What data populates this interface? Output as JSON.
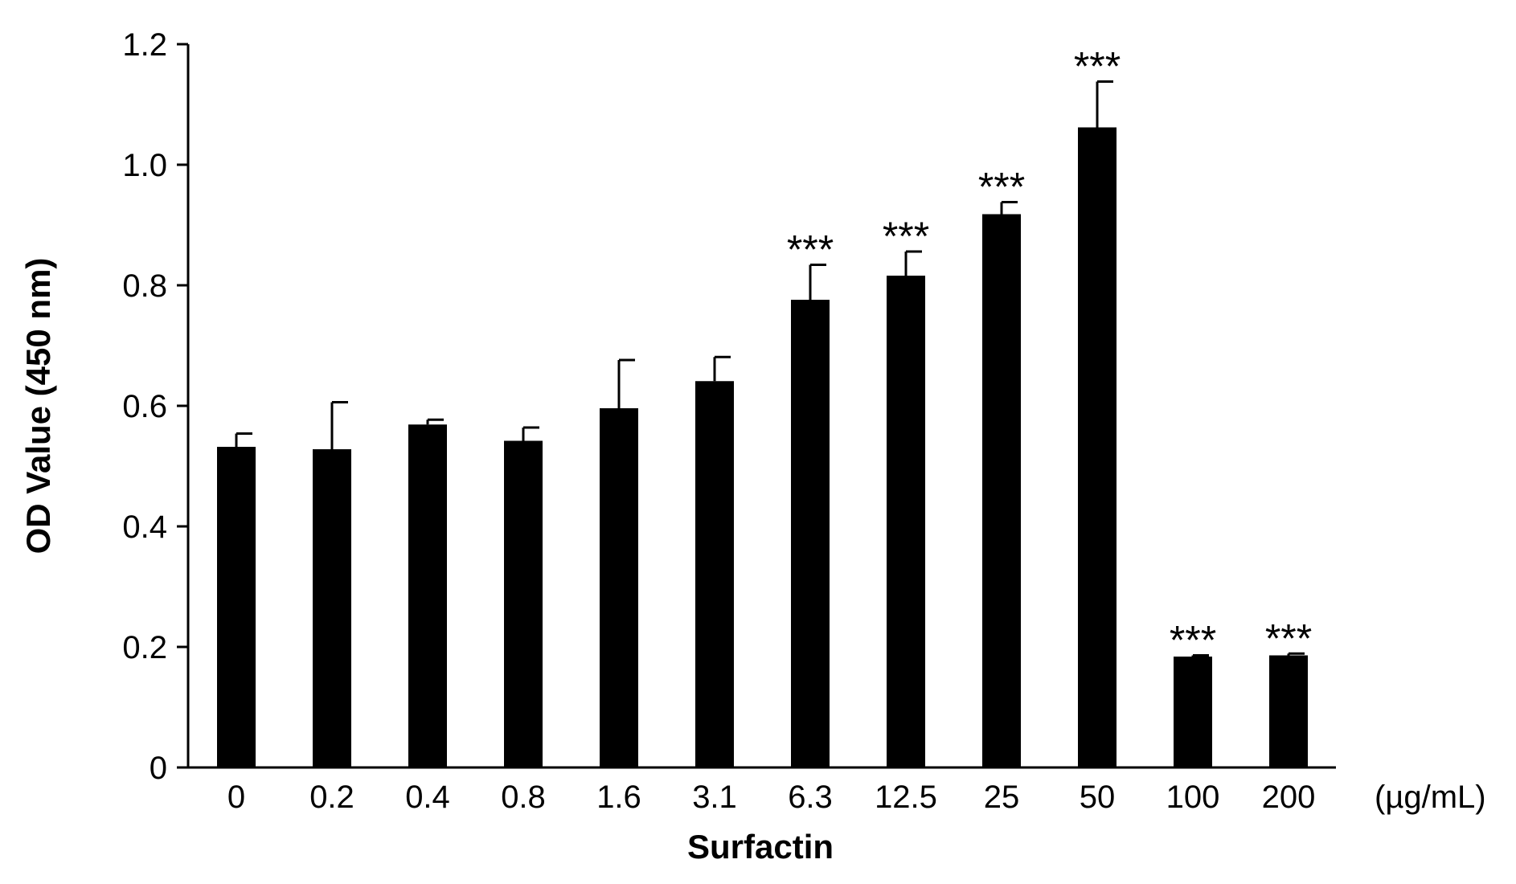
{
  "chart_data": {
    "type": "bar",
    "title": "",
    "xlabel": "Surfactin",
    "ylabel": "OD Value (450 nm)",
    "x_unit": "(µg/mL)",
    "categories": [
      "0",
      "0.2",
      "0.4",
      "0.8",
      "1.6",
      "3.1",
      "6.3",
      "12.5",
      "25",
      "50",
      "100",
      "200"
    ],
    "values": [
      0.532,
      0.528,
      0.569,
      0.542,
      0.596,
      0.641,
      0.776,
      0.816,
      0.918,
      1.062,
      0.184,
      0.186
    ],
    "errors": [
      0.022,
      0.078,
      0.008,
      0.022,
      0.08,
      0.04,
      0.058,
      0.04,
      0.02,
      0.076,
      0.002,
      0.003
    ],
    "significance": [
      "",
      "",
      "",
      "",
      "",
      "",
      "***",
      "***",
      "***",
      "***",
      "***",
      "***"
    ],
    "ylim": [
      0,
      1.2
    ],
    "yticks": [
      "0",
      "0.2",
      "0.4",
      "0.6",
      "0.8",
      "1.0",
      "1.2"
    ],
    "ytick_values": [
      0,
      0.2,
      0.4,
      0.6,
      0.8,
      1.0,
      1.2
    ],
    "grid": false,
    "legend": "none",
    "bar_color": "#000000"
  }
}
